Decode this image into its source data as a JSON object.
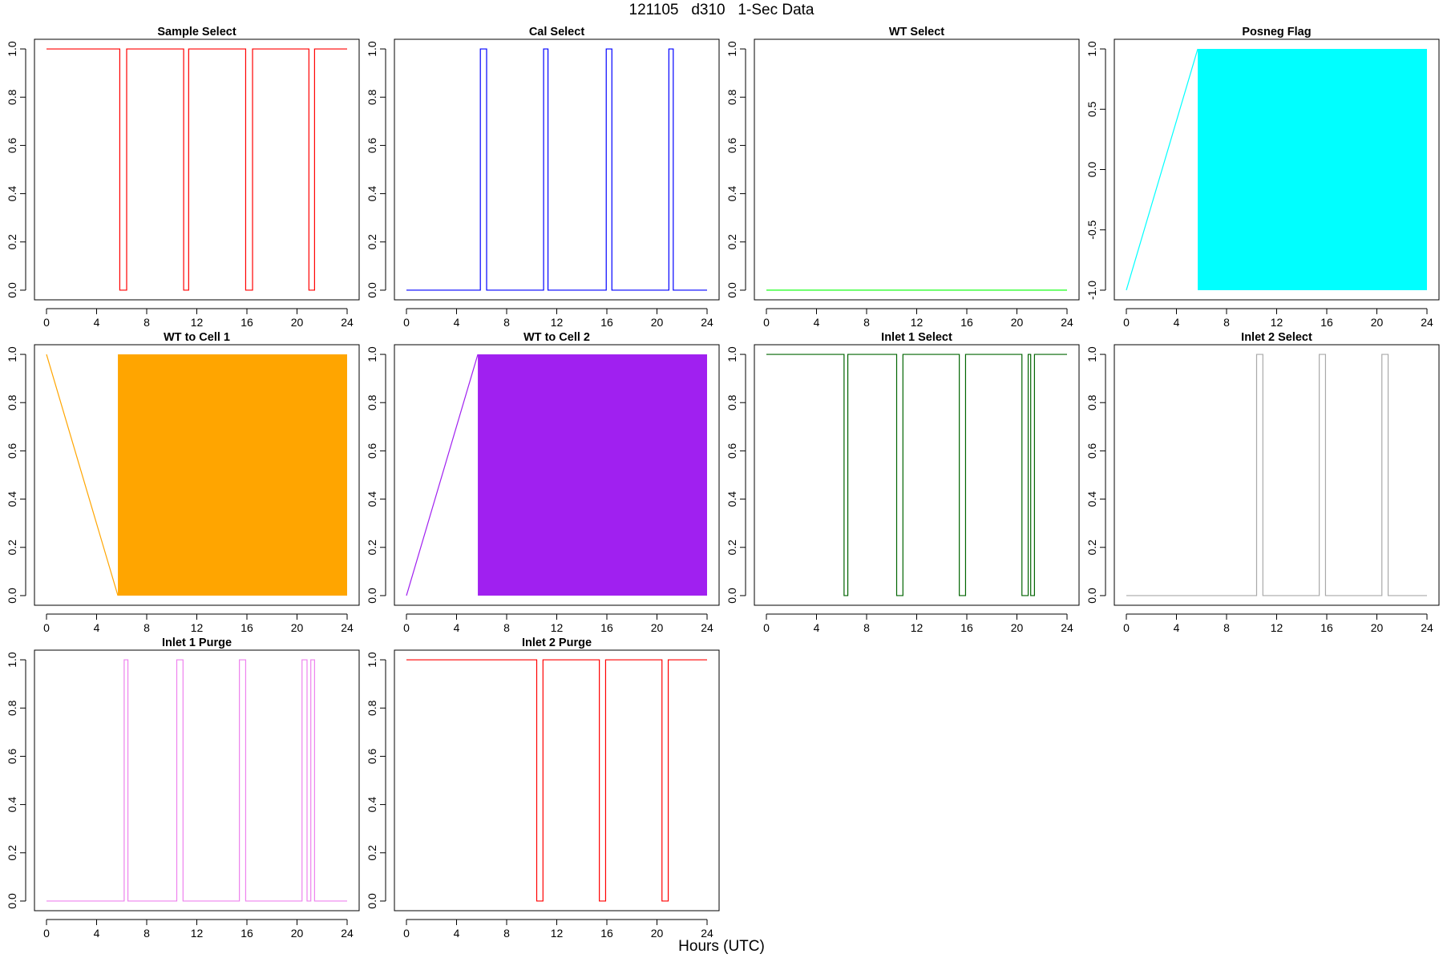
{
  "main_title": "121105   d310   1-Sec Data",
  "x_caption": "Hours (UTC)",
  "chart_data": [
    {
      "type": "line",
      "title": "Sample Select",
      "color": "#ff0000",
      "xlim": [
        0,
        24
      ],
      "ylim": [
        0,
        1
      ],
      "xticks": [
        0,
        4,
        8,
        12,
        16,
        20,
        24
      ],
      "yticks": [
        0.0,
        0.2,
        0.4,
        0.6,
        0.8,
        1.0
      ],
      "x": [
        0,
        5.85,
        5.85,
        6.4,
        6.4,
        10.95,
        10.95,
        11.35,
        11.35,
        15.9,
        15.9,
        16.45,
        16.45,
        20.95,
        20.95,
        21.4,
        21.4,
        24
      ],
      "y": [
        1,
        1,
        0,
        0,
        1,
        1,
        0,
        0,
        1,
        1,
        0,
        0,
        1,
        1,
        0,
        0,
        1,
        1
      ]
    },
    {
      "type": "line",
      "title": "Cal Select",
      "color": "#0000ff",
      "xlim": [
        0,
        24
      ],
      "ylim": [
        0,
        1
      ],
      "xticks": [
        0,
        4,
        8,
        12,
        16,
        20,
        24
      ],
      "yticks": [
        0.0,
        0.2,
        0.4,
        0.6,
        0.8,
        1.0
      ],
      "x": [
        0,
        5.9,
        5.9,
        6.4,
        6.4,
        10.95,
        10.95,
        11.3,
        11.3,
        15.95,
        15.95,
        16.4,
        16.4,
        20.95,
        20.95,
        21.3,
        21.3,
        24
      ],
      "y": [
        0,
        0,
        1,
        1,
        0,
        0,
        1,
        1,
        0,
        0,
        1,
        1,
        0,
        0,
        1,
        1,
        0,
        0
      ]
    },
    {
      "type": "line",
      "title": "WT Select",
      "color": "#00ff00",
      "xlim": [
        0,
        24
      ],
      "ylim": [
        0,
        1
      ],
      "xticks": [
        0,
        4,
        8,
        12,
        16,
        20,
        24
      ],
      "yticks": [
        0.0,
        0.2,
        0.4,
        0.6,
        0.8,
        1.0
      ],
      "x": [
        0,
        24
      ],
      "y": [
        0,
        0
      ]
    },
    {
      "type": "line",
      "title": "Posneg Flag",
      "color": "#00ffff",
      "xlim": [
        0,
        24
      ],
      "ylim": [
        -1,
        1
      ],
      "xticks": [
        0,
        4,
        8,
        12,
        16,
        20,
        24
      ],
      "yticks": [
        -1.0,
        -0.5,
        0.0,
        0.5,
        1.0
      ],
      "x": [
        0,
        5.7
      ],
      "y": [
        -1,
        1
      ],
      "filled_band": {
        "x_start": 5.7,
        "x_end": 24,
        "y_low": -1,
        "y_high": 1
      }
    },
    {
      "type": "line",
      "title": "WT to Cell 1",
      "color": "#ffa500",
      "xlim": [
        0,
        24
      ],
      "ylim": [
        0,
        1
      ],
      "xticks": [
        0,
        4,
        8,
        12,
        16,
        20,
        24
      ],
      "yticks": [
        0.0,
        0.2,
        0.4,
        0.6,
        0.8,
        1.0
      ],
      "x": [
        0,
        5.7
      ],
      "y": [
        1,
        0
      ],
      "filled_band": {
        "x_start": 5.7,
        "x_end": 24,
        "y_low": 0,
        "y_high": 1
      }
    },
    {
      "type": "line",
      "title": "WT to Cell 2",
      "color": "#a020f0",
      "xlim": [
        0,
        24
      ],
      "ylim": [
        0,
        1
      ],
      "xticks": [
        0,
        4,
        8,
        12,
        16,
        20,
        24
      ],
      "yticks": [
        0.0,
        0.2,
        0.4,
        0.6,
        0.8,
        1.0
      ],
      "x": [
        0,
        5.7
      ],
      "y": [
        0,
        1
      ],
      "filled_band": {
        "x_start": 5.7,
        "x_end": 24,
        "y_low": 0,
        "y_high": 1
      }
    },
    {
      "type": "line",
      "title": "Inlet 1 Select",
      "color": "#006400",
      "xlim": [
        0,
        24
      ],
      "ylim": [
        0,
        1
      ],
      "xticks": [
        0,
        4,
        8,
        12,
        16,
        20,
        24
      ],
      "yticks": [
        0.0,
        0.2,
        0.4,
        0.6,
        0.8,
        1.0
      ],
      "x": [
        0,
        6.2,
        6.2,
        6.5,
        6.5,
        10.4,
        10.4,
        10.9,
        10.9,
        15.4,
        15.4,
        15.9,
        15.9,
        20.4,
        20.4,
        20.9,
        20.9,
        21.1,
        21.1,
        21.4,
        21.4,
        24
      ],
      "y": [
        1,
        1,
        0,
        0,
        1,
        1,
        0,
        0,
        1,
        1,
        0,
        0,
        1,
        1,
        0,
        0,
        1,
        1,
        0,
        0,
        1,
        1
      ]
    },
    {
      "type": "line",
      "title": "Inlet 2 Select",
      "color": "#a9a9a9",
      "xlim": [
        0,
        24
      ],
      "ylim": [
        0,
        1
      ],
      "xticks": [
        0,
        4,
        8,
        12,
        16,
        20,
        24
      ],
      "yticks": [
        0.0,
        0.2,
        0.4,
        0.6,
        0.8,
        1.0
      ],
      "x": [
        0,
        10.4,
        10.4,
        10.9,
        10.9,
        15.4,
        15.4,
        15.9,
        15.9,
        20.4,
        20.4,
        20.9,
        20.9,
        24
      ],
      "y": [
        0,
        0,
        1,
        1,
        0,
        0,
        1,
        1,
        0,
        0,
        1,
        1,
        0,
        0
      ]
    },
    {
      "type": "line",
      "title": "Inlet 1 Purge",
      "color": "#ee82ee",
      "xlim": [
        0,
        24
      ],
      "ylim": [
        0,
        1
      ],
      "xticks": [
        0,
        4,
        8,
        12,
        16,
        20,
        24
      ],
      "yticks": [
        0.0,
        0.2,
        0.4,
        0.6,
        0.8,
        1.0
      ],
      "x": [
        0,
        6.2,
        6.2,
        6.5,
        6.5,
        10.4,
        10.4,
        10.9,
        10.9,
        15.4,
        15.4,
        15.9,
        15.9,
        20.4,
        20.4,
        20.8,
        20.8,
        21.1,
        21.1,
        21.4,
        21.4,
        24
      ],
      "y": [
        0,
        0,
        1,
        1,
        0,
        0,
        1,
        1,
        0,
        0,
        1,
        1,
        0,
        0,
        1,
        1,
        0,
        0,
        1,
        1,
        0,
        0
      ]
    },
    {
      "type": "line",
      "title": "Inlet 2 Purge",
      "color": "#ff0000",
      "xlim": [
        0,
        24
      ],
      "ylim": [
        0,
        1
      ],
      "xticks": [
        0,
        4,
        8,
        12,
        16,
        20,
        24
      ],
      "yticks": [
        0.0,
        0.2,
        0.4,
        0.6,
        0.8,
        1.0
      ],
      "x": [
        0,
        10.4,
        10.4,
        10.9,
        10.9,
        15.4,
        15.4,
        15.9,
        15.9,
        20.4,
        20.4,
        20.9,
        20.9,
        24
      ],
      "y": [
        1,
        1,
        0,
        0,
        1,
        1,
        0,
        0,
        1,
        1,
        0,
        0,
        1,
        1
      ]
    }
  ]
}
